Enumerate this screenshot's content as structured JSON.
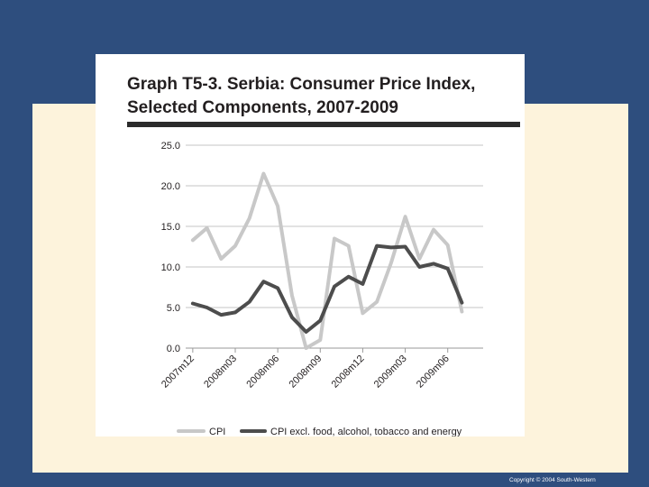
{
  "slide": {
    "copyright": "Copyright © 2004 South-Western"
  },
  "chart_data": {
    "type": "line",
    "title_line1": "Graph T5-3. Serbia: Consumer Price Index,",
    "title_line2": "Selected Components, 2007-2009",
    "xlabel": "",
    "ylabel": "",
    "ylim": [
      0,
      25
    ],
    "yticks": [
      "0.0",
      "5.0",
      "10.0",
      "15.0",
      "20.0",
      "25.0"
    ],
    "ytick_values": [
      0,
      5,
      10,
      15,
      20,
      25
    ],
    "grid": true,
    "legend_position": "bottom",
    "x": [
      "2007m12",
      "2008m01",
      "2008m02",
      "2008m03",
      "2008m04",
      "2008m05",
      "2008m06",
      "2008m07",
      "2008m08",
      "2008m09",
      "2008m10",
      "2008m11",
      "2008m12",
      "2009m01",
      "2009m02",
      "2009m03",
      "2009m04",
      "2009m05",
      "2009m06",
      "2009m07",
      "2009m08"
    ],
    "xtick_labels": [
      "2007m12",
      "2008m03",
      "2008m06",
      "2008m09",
      "2008m12",
      "2009m03",
      "2009m06"
    ],
    "xtick_index": [
      0,
      3,
      6,
      9,
      12,
      15,
      18
    ],
    "series": [
      {
        "name": "CPI",
        "color": "#c8c8c8",
        "values": [
          13.3,
          14.8,
          11.0,
          12.6,
          16.0,
          21.5,
          17.5,
          6.5,
          0.0,
          1.0,
          13.5,
          12.6,
          4.3,
          5.7,
          10.5,
          16.2,
          11.0,
          14.6,
          12.7,
          4.5,
          null
        ]
      },
      {
        "name": "CPI excl. food, alcohol, tobacco and energy",
        "color": "#4d4d4d",
        "values": [
          5.5,
          5.0,
          4.1,
          4.4,
          5.7,
          8.2,
          7.4,
          3.8,
          2.0,
          3.4,
          7.6,
          8.8,
          7.9,
          12.6,
          12.4,
          12.5,
          10.0,
          10.4,
          9.8,
          5.6,
          null
        ]
      }
    ]
  }
}
